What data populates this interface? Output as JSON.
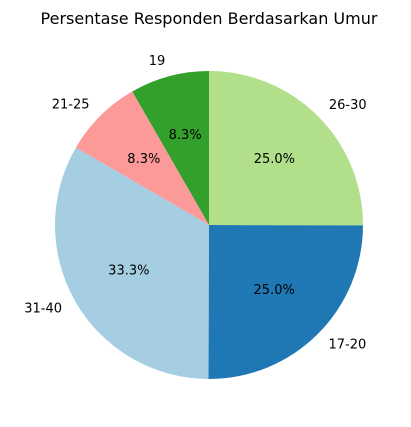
{
  "chart_data": {
    "type": "pie",
    "title": "Persentase Responden Berdasarkan Umur",
    "start_angle_deg": 90,
    "direction": "counterclockwise",
    "slices": [
      {
        "label": "19",
        "value": 8.3,
        "pct_text": "8.3%",
        "color": "#33a02c"
      },
      {
        "label": "21-25",
        "value": 8.3,
        "pct_text": "8.3%",
        "color": "#fb9a99"
      },
      {
        "label": "31-40",
        "value": 33.3,
        "pct_text": "33.3%",
        "color": "#a6cee3"
      },
      {
        "label": "17-20",
        "value": 25.0,
        "pct_text": "25.0%",
        "color": "#1f78b4"
      },
      {
        "label": "26-30",
        "value": 25.0,
        "pct_text": "25.0%",
        "color": "#b2df8a"
      }
    ]
  }
}
